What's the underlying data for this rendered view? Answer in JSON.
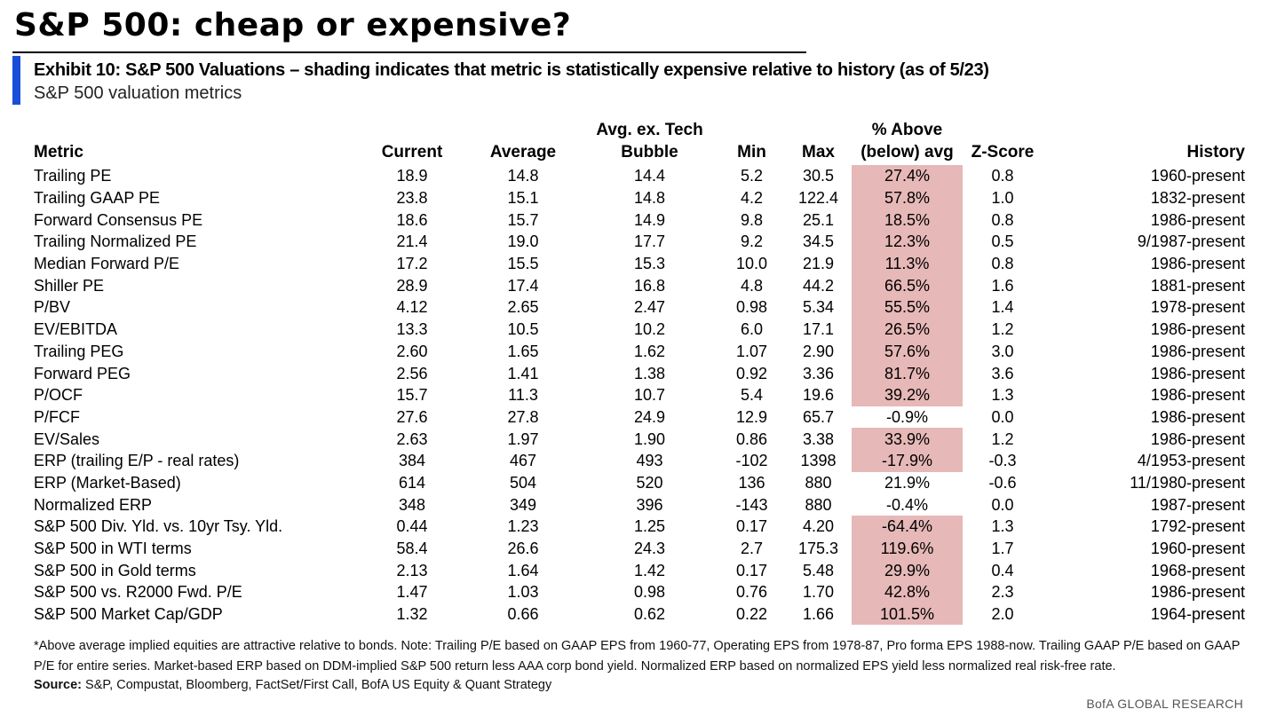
{
  "main_title": "S&P 500: cheap or expensive?",
  "exhibit": {
    "title": "Exhibit 10: S&P 500 Valuations – shading indicates that metric is statistically expensive relative to history (as of 5/23)",
    "subtitle": "S&P 500 valuation metrics"
  },
  "colors": {
    "accent": "#1a4ed8",
    "shading": "#e6b8b7"
  },
  "table": {
    "headers": {
      "metric": "Metric",
      "current": "Current",
      "average": "Average",
      "avg_ex_tech_line1": "Avg. ex. Tech",
      "avg_ex_tech_line2": "Bubble",
      "min": "Min",
      "max": "Max",
      "pct_line1": "% Above",
      "pct_line2": "(below) avg",
      "z_score": "Z-Score",
      "history": "History"
    },
    "rows": [
      {
        "metric": "Trailing PE",
        "current": "18.9",
        "average": "14.8",
        "avg_ex_tech": "14.4",
        "min": "5.2",
        "max": "30.5",
        "pct": "27.4%",
        "shaded": true,
        "z": "0.8",
        "history": "1960-present"
      },
      {
        "metric": "Trailing GAAP PE",
        "current": "23.8",
        "average": "15.1",
        "avg_ex_tech": "14.8",
        "min": "4.2",
        "max": "122.4",
        "pct": "57.8%",
        "shaded": true,
        "z": "1.0",
        "history": "1832-present"
      },
      {
        "metric": "Forward Consensus PE",
        "current": "18.6",
        "average": "15.7",
        "avg_ex_tech": "14.9",
        "min": "9.8",
        "max": "25.1",
        "pct": "18.5%",
        "shaded": true,
        "z": "0.8",
        "history": "1986-present"
      },
      {
        "metric": "Trailing Normalized PE",
        "current": "21.4",
        "average": "19.0",
        "avg_ex_tech": "17.7",
        "min": "9.2",
        "max": "34.5",
        "pct": "12.3%",
        "shaded": true,
        "z": "0.5",
        "history": "9/1987-present"
      },
      {
        "metric": "Median Forward P/E",
        "current": "17.2",
        "average": "15.5",
        "avg_ex_tech": "15.3",
        "min": "10.0",
        "max": "21.9",
        "pct": "11.3%",
        "shaded": true,
        "z": "0.8",
        "history": "1986-present"
      },
      {
        "metric": "Shiller PE",
        "current": "28.9",
        "average": "17.4",
        "avg_ex_tech": "16.8",
        "min": "4.8",
        "max": "44.2",
        "pct": "66.5%",
        "shaded": true,
        "z": "1.6",
        "history": "1881-present"
      },
      {
        "metric": "P/BV",
        "current": "4.12",
        "average": "2.65",
        "avg_ex_tech": "2.47",
        "min": "0.98",
        "max": "5.34",
        "pct": "55.5%",
        "shaded": true,
        "z": "1.4",
        "history": "1978-present"
      },
      {
        "metric": "EV/EBITDA",
        "current": "13.3",
        "average": "10.5",
        "avg_ex_tech": "10.2",
        "min": "6.0",
        "max": "17.1",
        "pct": "26.5%",
        "shaded": true,
        "z": "1.2",
        "history": "1986-present"
      },
      {
        "metric": "Trailing PEG",
        "current": "2.60",
        "average": "1.65",
        "avg_ex_tech": "1.62",
        "min": "1.07",
        "max": "2.90",
        "pct": "57.6%",
        "shaded": true,
        "z": "3.0",
        "history": "1986-present"
      },
      {
        "metric": "Forward PEG",
        "current": "2.56",
        "average": "1.41",
        "avg_ex_tech": "1.38",
        "min": "0.92",
        "max": "3.36",
        "pct": "81.7%",
        "shaded": true,
        "z": "3.6",
        "history": "1986-present"
      },
      {
        "metric": "P/OCF",
        "current": "15.7",
        "average": "11.3",
        "avg_ex_tech": "10.7",
        "min": "5.4",
        "max": "19.6",
        "pct": "39.2%",
        "shaded": true,
        "z": "1.3",
        "history": "1986-present"
      },
      {
        "metric": "P/FCF",
        "current": "27.6",
        "average": "27.8",
        "avg_ex_tech": "24.9",
        "min": "12.9",
        "max": "65.7",
        "pct": "-0.9%",
        "shaded": false,
        "z": "0.0",
        "history": "1986-present"
      },
      {
        "metric": "EV/Sales",
        "current": "2.63",
        "average": "1.97",
        "avg_ex_tech": "1.90",
        "min": "0.86",
        "max": "3.38",
        "pct": "33.9%",
        "shaded": true,
        "z": "1.2",
        "history": "1986-present"
      },
      {
        "metric": "ERP (trailing E/P - real rates)",
        "current": "384",
        "average": "467",
        "avg_ex_tech": "493",
        "min": "-102",
        "max": "1398",
        "pct": "-17.9%",
        "shaded": true,
        "z": "-0.3",
        "history": "4/1953-present"
      },
      {
        "metric": "ERP (Market-Based)",
        "current": "614",
        "average": "504",
        "avg_ex_tech": "520",
        "min": "136",
        "max": "880",
        "pct": "21.9%",
        "shaded": false,
        "z": "-0.6",
        "history": "11/1980-present"
      },
      {
        "metric": "Normalized ERP",
        "current": "348",
        "average": "349",
        "avg_ex_tech": "396",
        "min": "-143",
        "max": "880",
        "pct": "-0.4%",
        "shaded": false,
        "z": "0.0",
        "history": "1987-present"
      },
      {
        "metric": "S&P 500 Div. Yld. vs. 10yr Tsy. Yld.",
        "current": "0.44",
        "average": "1.23",
        "avg_ex_tech": "1.25",
        "min": "0.17",
        "max": "4.20",
        "pct": "-64.4%",
        "shaded": true,
        "z": "1.3",
        "history": "1792-present"
      },
      {
        "metric": "S&P 500 in WTI terms",
        "current": "58.4",
        "average": "26.6",
        "avg_ex_tech": "24.3",
        "min": "2.7",
        "max": "175.3",
        "pct": "119.6%",
        "shaded": true,
        "z": "1.7",
        "history": "1960-present"
      },
      {
        "metric": "S&P 500 in Gold terms",
        "current": "2.13",
        "average": "1.64",
        "avg_ex_tech": "1.42",
        "min": "0.17",
        "max": "5.48",
        "pct": "29.9%",
        "shaded": true,
        "z": "0.4",
        "history": "1968-present"
      },
      {
        "metric": "S&P 500 vs. R2000 Fwd. P/E",
        "current": "1.47",
        "average": "1.03",
        "avg_ex_tech": "0.98",
        "min": "0.76",
        "max": "1.70",
        "pct": "42.8%",
        "shaded": true,
        "z": "2.3",
        "history": "1986-present"
      },
      {
        "metric": "S&P 500 Market Cap/GDP",
        "current": "1.32",
        "average": "0.66",
        "avg_ex_tech": "0.62",
        "min": "0.22",
        "max": "1.66",
        "pct": "101.5%",
        "shaded": true,
        "z": "2.0",
        "history": "1964-present"
      }
    ]
  },
  "footnote": "*Above average implied equities are attractive relative to bonds.  Note: Trailing P/E based on GAAP EPS from 1960-77, Operating EPS from 1978-87, Pro forma EPS 1988-now. Trailing GAAP P/E based on GAAP P/E for entire series. Market-based ERP based on DDM-implied S&P 500 return less AAA corp bond yield. Normalized ERP based on normalized EPS yield less normalized real risk-free rate.",
  "source": {
    "label": "Source:",
    "text": "S&P, Compustat, Bloomberg, FactSet/First Call, BofA US Equity & Quant Strategy"
  },
  "brand": "BofA GLOBAL RESEARCH"
}
